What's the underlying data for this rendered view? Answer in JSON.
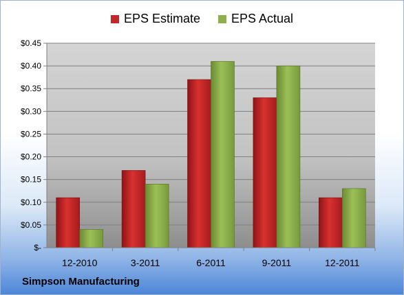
{
  "legend": {
    "estimate_label": "EPS Estimate",
    "actual_label": "EPS Actual"
  },
  "company": "Simpson Manufacturing",
  "colors": {
    "estimate": "#c0282a",
    "actual": "#8db04b"
  },
  "chart_data": {
    "type": "bar",
    "categories": [
      "12-2010",
      "3-2011",
      "6-2011",
      "9-2011",
      "12-2011"
    ],
    "series": [
      {
        "name": "EPS Estimate",
        "values": [
          0.11,
          0.17,
          0.37,
          0.33,
          0.11
        ]
      },
      {
        "name": "EPS Actual",
        "values": [
          0.04,
          0.14,
          0.41,
          0.4,
          0.13
        ]
      }
    ],
    "ylim": [
      0,
      0.45
    ],
    "yticks": [
      0,
      0.05,
      0.1,
      0.15,
      0.2,
      0.25,
      0.3,
      0.35,
      0.4,
      0.45
    ],
    "ytick_labels": [
      "$-",
      "$0.05",
      "$0.10",
      "$0.15",
      "$0.20",
      "$0.25",
      "$0.30",
      "$0.35",
      "$0.40",
      "$0.45"
    ],
    "grid": true,
    "legend_position": "top"
  }
}
